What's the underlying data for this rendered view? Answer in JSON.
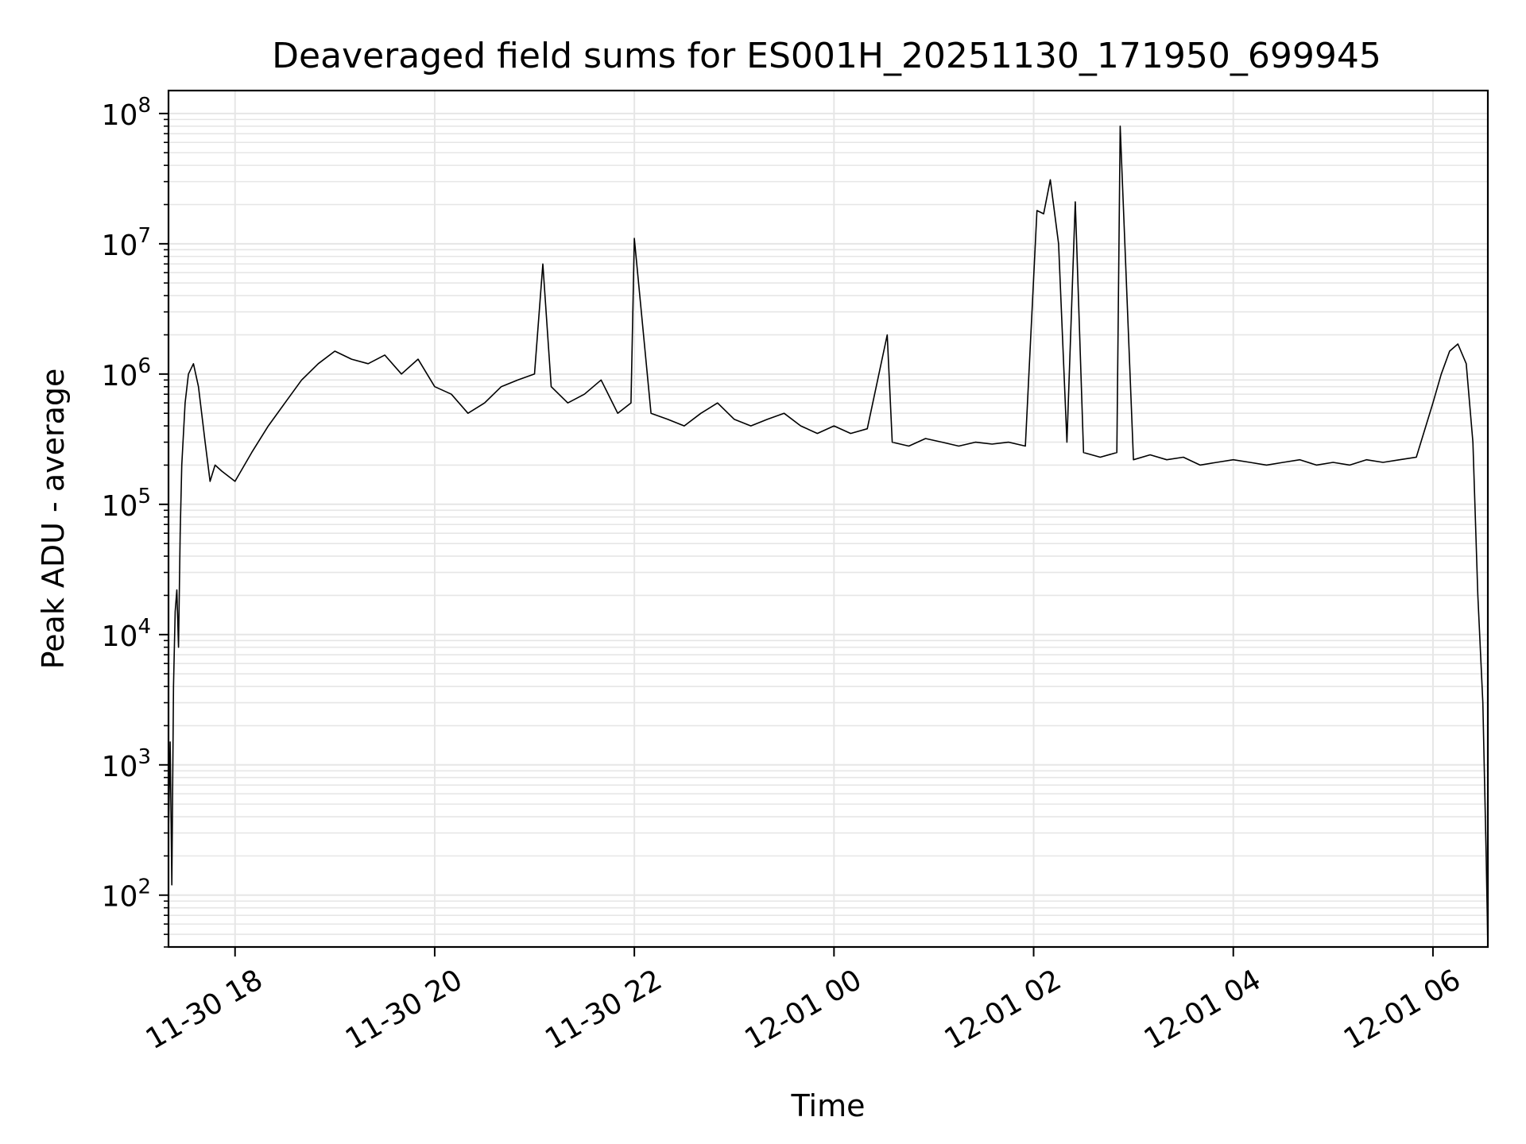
{
  "chart_data": {
    "type": "line",
    "title": "Deaveraged field sums for ES001H_20251130_171950_699945",
    "xlabel": "Time",
    "ylabel": "Peak ADU - average",
    "yscale": "log",
    "ylim": [
      40,
      150000000
    ],
    "xlim": [
      "2025-11-30 17:20",
      "2025-12-01 06:33"
    ],
    "grid": true,
    "line_color": "#000000",
    "x_ticks": [
      {
        "value": "2025-11-30 18:00",
        "label": "11-30 18"
      },
      {
        "value": "2025-11-30 20:00",
        "label": "11-30 20"
      },
      {
        "value": "2025-11-30 22:00",
        "label": "11-30 22"
      },
      {
        "value": "2025-12-01 00:00",
        "label": "12-01 00"
      },
      {
        "value": "2025-12-01 02:00",
        "label": "12-01 02"
      },
      {
        "value": "2025-12-01 04:00",
        "label": "12-01 04"
      },
      {
        "value": "2025-12-01 06:00",
        "label": "12-01 06"
      }
    ],
    "y_ticks": [
      {
        "value": 100,
        "base": "10",
        "exp": "2"
      },
      {
        "value": 1000,
        "base": "10",
        "exp": "3"
      },
      {
        "value": 10000,
        "base": "10",
        "exp": "4"
      },
      {
        "value": 100000,
        "base": "10",
        "exp": "5"
      },
      {
        "value": 1000000,
        "base": "10",
        "exp": "6"
      },
      {
        "value": 10000000,
        "base": "10",
        "exp": "7"
      },
      {
        "value": 100000000,
        "base": "10",
        "exp": "8"
      }
    ],
    "series": [
      {
        "x": [
          "2025-11-30 17:20",
          "2025-11-30 17:21",
          "2025-11-30 17:22",
          "2025-11-30 17:23",
          "2025-11-30 17:24",
          "2025-11-30 17:25",
          "2025-11-30 17:26",
          "2025-11-30 17:27",
          "2025-11-30 17:28",
          "2025-11-30 17:30",
          "2025-11-30 17:32",
          "2025-11-30 17:35",
          "2025-11-30 17:38",
          "2025-11-30 17:42",
          "2025-11-30 17:45",
          "2025-11-30 17:48",
          "2025-11-30 17:52",
          "2025-11-30 18:00",
          "2025-11-30 18:10",
          "2025-11-30 18:20",
          "2025-11-30 18:30",
          "2025-11-30 18:40",
          "2025-11-30 18:50",
          "2025-11-30 19:00",
          "2025-11-30 19:10",
          "2025-11-30 19:20",
          "2025-11-30 19:30",
          "2025-11-30 19:40",
          "2025-11-30 19:50",
          "2025-11-30 20:00",
          "2025-11-30 20:10",
          "2025-11-30 20:20",
          "2025-11-30 20:30",
          "2025-11-30 20:40",
          "2025-11-30 20:50",
          "2025-11-30 21:00",
          "2025-11-30 21:05",
          "2025-11-30 21:10",
          "2025-11-30 21:20",
          "2025-11-30 21:30",
          "2025-11-30 21:40",
          "2025-11-30 21:50",
          "2025-11-30 21:58",
          "2025-11-30 22:00",
          "2025-11-30 22:10",
          "2025-11-30 22:20",
          "2025-11-30 22:30",
          "2025-11-30 22:40",
          "2025-11-30 22:50",
          "2025-11-30 23:00",
          "2025-11-30 23:10",
          "2025-11-30 23:20",
          "2025-11-30 23:30",
          "2025-11-30 23:40",
          "2025-11-30 23:50",
          "2025-12-01 00:00",
          "2025-12-01 00:10",
          "2025-12-01 00:20",
          "2025-12-01 00:32",
          "2025-12-01 00:35",
          "2025-12-01 00:45",
          "2025-12-01 00:55",
          "2025-12-01 01:05",
          "2025-12-01 01:15",
          "2025-12-01 01:25",
          "2025-12-01 01:35",
          "2025-12-01 01:45",
          "2025-12-01 01:55",
          "2025-12-01 02:02",
          "2025-12-01 02:06",
          "2025-12-01 02:10",
          "2025-12-01 02:15",
          "2025-12-01 02:20",
          "2025-12-01 02:25",
          "2025-12-01 02:30",
          "2025-12-01 02:40",
          "2025-12-01 02:50",
          "2025-12-01 02:52",
          "2025-12-01 03:00",
          "2025-12-01 03:10",
          "2025-12-01 03:20",
          "2025-12-01 03:30",
          "2025-12-01 03:40",
          "2025-12-01 03:50",
          "2025-12-01 04:00",
          "2025-12-01 04:10",
          "2025-12-01 04:20",
          "2025-12-01 04:30",
          "2025-12-01 04:40",
          "2025-12-01 04:50",
          "2025-12-01 05:00",
          "2025-12-01 05:10",
          "2025-12-01 05:20",
          "2025-12-01 05:30",
          "2025-12-01 05:40",
          "2025-12-01 05:50",
          "2025-12-01 06:00",
          "2025-12-01 06:05",
          "2025-12-01 06:10",
          "2025-12-01 06:15",
          "2025-12-01 06:20",
          "2025-12-01 06:24",
          "2025-12-01 06:27",
          "2025-12-01 06:30",
          "2025-12-01 06:32",
          "2025-12-01 06:33"
        ],
        "y": [
          300,
          1500,
          120,
          4000,
          15000,
          22000,
          8000,
          60000,
          200000,
          600000,
          1000000,
          1200000,
          800000,
          300000,
          150000,
          200000,
          180000,
          150000,
          250000,
          400000,
          600000,
          900000,
          1200000,
          1500000,
          1300000,
          1200000,
          1400000,
          1000000,
          1300000,
          800000,
          700000,
          500000,
          600000,
          800000,
          900000,
          1000000,
          7000000,
          800000,
          600000,
          700000,
          900000,
          500000,
          600000,
          11000000,
          500000,
          450000,
          400000,
          500000,
          600000,
          450000,
          400000,
          450000,
          500000,
          400000,
          350000,
          400000,
          350000,
          380000,
          2000000,
          300000,
          280000,
          320000,
          300000,
          280000,
          300000,
          290000,
          300000,
          280000,
          18000000,
          17000000,
          31000000,
          10000000,
          300000,
          21000000,
          250000,
          230000,
          250000,
          80000000,
          220000,
          240000,
          220000,
          230000,
          200000,
          210000,
          220000,
          210000,
          200000,
          210000,
          220000,
          200000,
          210000,
          200000,
          220000,
          210000,
          220000,
          230000,
          600000,
          1000000,
          1500000,
          1700000,
          1200000,
          300000,
          20000,
          3000,
          200,
          40
        ]
      }
    ]
  }
}
